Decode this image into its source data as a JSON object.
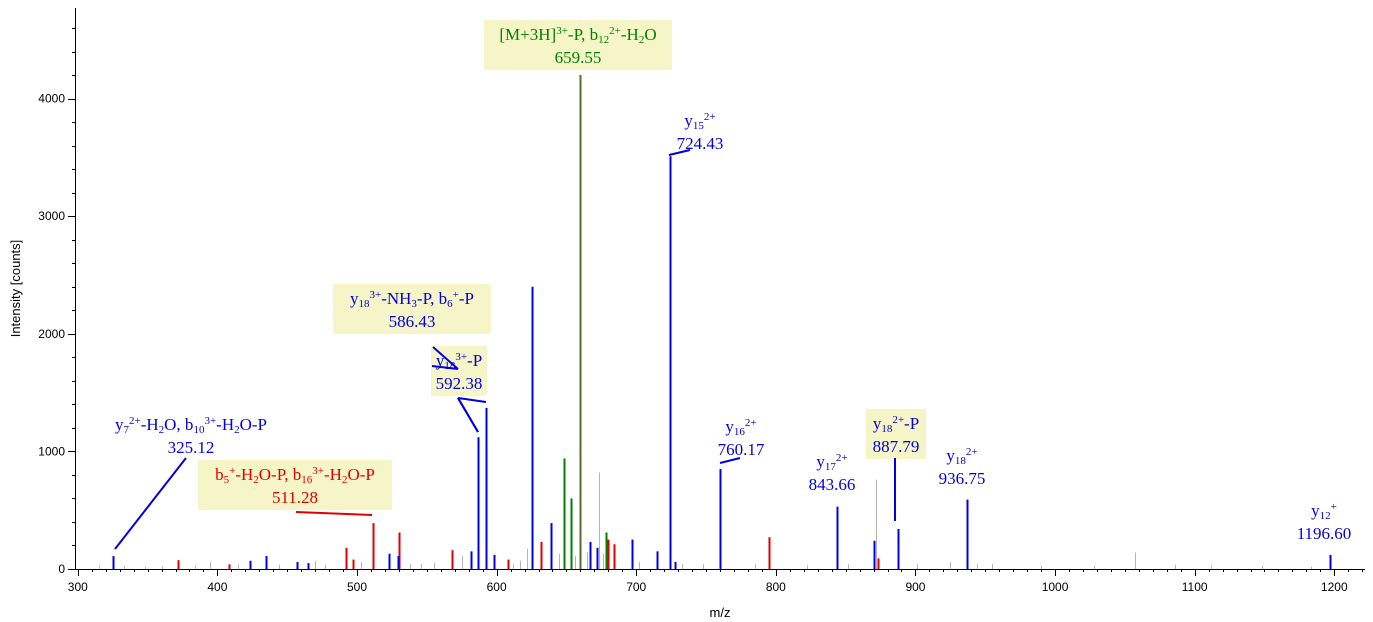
{
  "chart_data": {
    "type": "bar",
    "xlabel": "m/z",
    "ylabel": "Intensity [counts]",
    "xlim": [
      298,
      1222
    ],
    "ylim": [
      0,
      4770
    ],
    "x_ticks": [
      300,
      400,
      500,
      600,
      700,
      800,
      900,
      1000,
      1100,
      1200
    ],
    "y_ticks": [
      0,
      1000,
      2000,
      3000,
      4000
    ],
    "colors": {
      "blue": "#0000e0",
      "red": "#e00000",
      "green": "#008000",
      "dark_green": "#556b2f",
      "gray": "#b4b4b4",
      "highlight": "#f5f5c8"
    },
    "series": [
      {
        "color_key": "blue",
        "peaks": [
          {
            "x": 325.12,
            "y": 110
          },
          {
            "x": 423,
            "y": 70
          },
          {
            "x": 435,
            "y": 110
          },
          {
            "x": 457,
            "y": 60
          },
          {
            "x": 465,
            "y": 50
          },
          {
            "x": 523,
            "y": 130
          },
          {
            "x": 529,
            "y": 110
          },
          {
            "x": 582,
            "y": 150
          },
          {
            "x": 586.43,
            "y": 1120
          },
          {
            "x": 592.38,
            "y": 1370
          },
          {
            "x": 598,
            "y": 120
          },
          {
            "x": 625,
            "y": 2400
          },
          {
            "x": 639,
            "y": 390
          },
          {
            "x": 667,
            "y": 230
          },
          {
            "x": 672,
            "y": 180
          },
          {
            "x": 697,
            "y": 250
          },
          {
            "x": 715,
            "y": 150
          },
          {
            "x": 724.43,
            "y": 3510
          },
          {
            "x": 728,
            "y": 60
          },
          {
            "x": 760.17,
            "y": 850
          },
          {
            "x": 843.66,
            "y": 530
          },
          {
            "x": 870,
            "y": 240
          },
          {
            "x": 887.79,
            "y": 340
          },
          {
            "x": 936.75,
            "y": 590
          },
          {
            "x": 1196.6,
            "y": 120
          }
        ]
      },
      {
        "color_key": "red",
        "peaks": [
          {
            "x": 372,
            "y": 75
          },
          {
            "x": 408,
            "y": 40
          },
          {
            "x": 492,
            "y": 180
          },
          {
            "x": 497,
            "y": 80
          },
          {
            "x": 511.28,
            "y": 390
          },
          {
            "x": 530,
            "y": 310
          },
          {
            "x": 568,
            "y": 160
          },
          {
            "x": 608,
            "y": 80
          },
          {
            "x": 632,
            "y": 230
          },
          {
            "x": 680,
            "y": 250
          },
          {
            "x": 684,
            "y": 210
          },
          {
            "x": 795,
            "y": 270
          },
          {
            "x": 873,
            "y": 90
          }
        ]
      },
      {
        "color_key": "green",
        "peaks": [
          {
            "x": 648,
            "y": 940
          },
          {
            "x": 653,
            "y": 600
          },
          {
            "x": 678,
            "y": 310
          }
        ]
      },
      {
        "color_key": "dark_green",
        "peaks": [
          {
            "x": 659.55,
            "y": 4200
          }
        ]
      },
      {
        "color_key": "gray",
        "peaks": [
          {
            "x": 315,
            "y": 30
          },
          {
            "x": 333,
            "y": 25
          },
          {
            "x": 348,
            "y": 20
          },
          {
            "x": 360,
            "y": 25
          },
          {
            "x": 384,
            "y": 30
          },
          {
            "x": 395,
            "y": 60
          },
          {
            "x": 415,
            "y": 40
          },
          {
            "x": 444,
            "y": 35
          },
          {
            "x": 470,
            "y": 70
          },
          {
            "x": 477,
            "y": 35
          },
          {
            "x": 503,
            "y": 60
          },
          {
            "x": 538,
            "y": 40
          },
          {
            "x": 546,
            "y": 45
          },
          {
            "x": 555,
            "y": 55
          },
          {
            "x": 575,
            "y": 110
          },
          {
            "x": 612,
            "y": 40
          },
          {
            "x": 617,
            "y": 70
          },
          {
            "x": 622,
            "y": 170
          },
          {
            "x": 645,
            "y": 130
          },
          {
            "x": 656,
            "y": 110
          },
          {
            "x": 665,
            "y": 140
          },
          {
            "x": 673,
            "y": 820
          },
          {
            "x": 676,
            "y": 130
          },
          {
            "x": 702,
            "y": 60
          },
          {
            "x": 733,
            "y": 40
          },
          {
            "x": 748,
            "y": 40
          },
          {
            "x": 785,
            "y": 40
          },
          {
            "x": 822,
            "y": 30
          },
          {
            "x": 852,
            "y": 40
          },
          {
            "x": 872,
            "y": 760
          },
          {
            "x": 901,
            "y": 40
          },
          {
            "x": 925,
            "y": 60
          },
          {
            "x": 944,
            "y": 40
          },
          {
            "x": 955,
            "y": 45
          },
          {
            "x": 990,
            "y": 25
          },
          {
            "x": 1028,
            "y": 25
          },
          {
            "x": 1057,
            "y": 140
          },
          {
            "x": 1086,
            "y": 35
          },
          {
            "x": 1112,
            "y": 30
          },
          {
            "x": 1148,
            "y": 25
          },
          {
            "x": 1183,
            "y": 20
          }
        ]
      }
    ],
    "annotations": [
      {
        "label_parts": [
          [
            "[M+3H]",
            ""
          ],
          [
            "3+",
            "sup"
          ],
          [
            "-P, b",
            ""
          ],
          [
            "12",
            "sub"
          ],
          [
            "2+",
            "sup"
          ],
          [
            "-H",
            ""
          ],
          [
            "2",
            "sub"
          ],
          [
            "O",
            ""
          ]
        ],
        "mz": "659.55",
        "color_key": "green",
        "highlight": true
      },
      {
        "label_parts": [
          [
            "y",
            ""
          ],
          [
            "15",
            "sub"
          ],
          [
            "2+",
            "sup"
          ]
        ],
        "mz": "724.43",
        "color_key": "blue",
        "highlight": false
      },
      {
        "label_parts": [
          [
            "y",
            ""
          ],
          [
            "18",
            "sub"
          ],
          [
            "3+",
            "sup"
          ],
          [
            "-NH",
            ""
          ],
          [
            "3",
            "sub"
          ],
          [
            "-P, b",
            ""
          ],
          [
            "6",
            "sub"
          ],
          [
            "+",
            "sup"
          ],
          [
            "-P",
            ""
          ]
        ],
        "mz": "586.43",
        "color_key": "blue",
        "highlight": true
      },
      {
        "label_parts": [
          [
            "y",
            ""
          ],
          [
            "18",
            "sub"
          ],
          [
            "3+",
            "sup"
          ],
          [
            "-P",
            ""
          ]
        ],
        "mz": "592.38",
        "color_key": "blue",
        "highlight": true
      },
      {
        "label_parts": [
          [
            "y",
            ""
          ],
          [
            "7",
            "sub"
          ],
          [
            "2+",
            "sup"
          ],
          [
            "-H",
            ""
          ],
          [
            "2",
            "sub"
          ],
          [
            "O, b",
            ""
          ],
          [
            "10",
            "sub"
          ],
          [
            "3+",
            "sup"
          ],
          [
            "-H",
            ""
          ],
          [
            "2",
            "sub"
          ],
          [
            "O-P",
            ""
          ]
        ],
        "mz": "325.12",
        "color_key": "blue",
        "highlight": false
      },
      {
        "label_parts": [
          [
            "b",
            ""
          ],
          [
            "5",
            "sub"
          ],
          [
            "+",
            "sup"
          ],
          [
            "-H",
            ""
          ],
          [
            "2",
            "sub"
          ],
          [
            "O-P, b",
            ""
          ],
          [
            "16",
            "sub"
          ],
          [
            "3+",
            "sup"
          ],
          [
            "-H",
            ""
          ],
          [
            "2",
            "sub"
          ],
          [
            "O-P",
            ""
          ]
        ],
        "mz": "511.28",
        "color_key": "red",
        "highlight": true
      },
      {
        "label_parts": [
          [
            "y",
            ""
          ],
          [
            "16",
            "sub"
          ],
          [
            "2+",
            "sup"
          ]
        ],
        "mz": "760.17",
        "color_key": "blue",
        "highlight": false
      },
      {
        "label_parts": [
          [
            "y",
            ""
          ],
          [
            "17",
            "sub"
          ],
          [
            "2+",
            "sup"
          ]
        ],
        "mz": "843.66",
        "color_key": "blue",
        "highlight": false
      },
      {
        "label_parts": [
          [
            "y",
            ""
          ],
          [
            "18",
            "sub"
          ],
          [
            "2+",
            "sup"
          ],
          [
            "-P",
            ""
          ]
        ],
        "mz": "887.79",
        "color_key": "blue",
        "highlight": true
      },
      {
        "label_parts": [
          [
            "y",
            ""
          ],
          [
            "18",
            "sub"
          ],
          [
            "2+",
            "sup"
          ]
        ],
        "mz": "936.75",
        "color_key": "blue",
        "highlight": false
      },
      {
        "label_parts": [
          [
            "y",
            ""
          ],
          [
            "12",
            "sub"
          ],
          [
            "+",
            "sup"
          ]
        ],
        "mz": "1196.60",
        "color_key": "blue",
        "highlight": false
      }
    ]
  }
}
